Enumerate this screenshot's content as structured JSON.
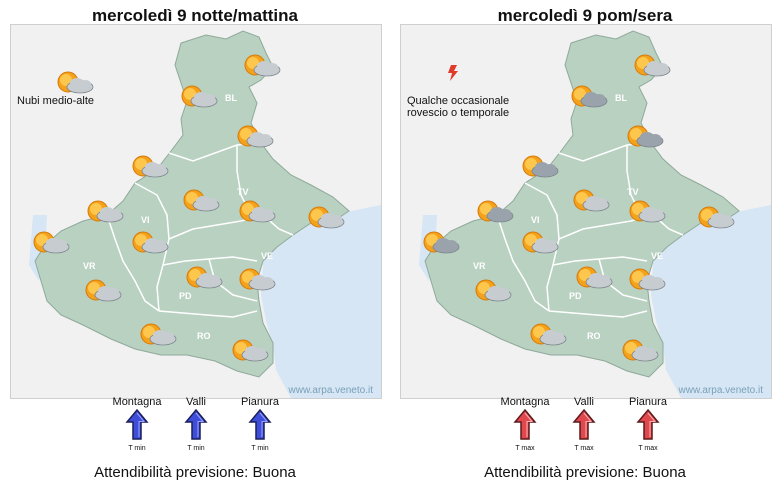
{
  "colors": {
    "land": "#b8d1c1",
    "sea": "#d6e6f5",
    "outside": "#f1f1f1",
    "border": "#ffffff",
    "arrow_min": "#3f4ed8",
    "arrow_max": "#e0484d"
  },
  "credit": "www.arpa.veneto.it",
  "provinces": [
    "BL",
    "TV",
    "VI",
    "VR",
    "VE",
    "PD",
    "RO"
  ],
  "left": {
    "title": "mercoledì  9 notte/mattina",
    "note": "Nubi medio-alte",
    "note_icon": "sun-behind-cloud-icon",
    "icons": [
      "sun-behind-cloud-icon",
      "sun-behind-cloud-icon",
      "sun-behind-cloud-icon",
      "sun-behind-cloud-icon",
      "sun-behind-cloud-icon",
      "sun-behind-cloud-icon",
      "sun-behind-cloud-icon",
      "sun-behind-cloud-icon",
      "sun-behind-cloud-icon",
      "sun-behind-cloud-icon",
      "sun-behind-cloud-icon",
      "sun-behind-cloud-icon",
      "sun-behind-cloud-icon",
      "sun-behind-cloud-icon"
    ],
    "trend": [
      {
        "label": "Montagna",
        "sub": "T min",
        "direction": "up"
      },
      {
        "label": "Valli",
        "sub": "T min",
        "direction": "up"
      },
      {
        "label": "Pianura",
        "sub": "T min",
        "direction": "up"
      }
    ],
    "reliability": "Attendibilità previsione: Buona"
  },
  "right": {
    "title": "mercoledì  9 pom/sera",
    "note": "Qualche occasionale\nrovescio o temporale",
    "note_icon": "lightning-icon",
    "icons": [
      "cloudy-sun-icon",
      "cloudy-sun-icon",
      "cloudy-sun-icon",
      "cloudy-sun-icon",
      "cloudy-sun-icon",
      "sun-behind-cloud-icon",
      "sun-behind-cloud-icon",
      "sun-behind-cloud-icon",
      "sun-behind-cloud-icon",
      "sun-behind-cloud-icon",
      "sun-behind-cloud-icon",
      "sun-behind-cloud-icon",
      "sun-behind-cloud-icon",
      "sun-behind-cloud-icon"
    ],
    "trend": [
      {
        "label": "Montagna",
        "sub": "T max",
        "direction": "up"
      },
      {
        "label": "Valli",
        "sub": "T max",
        "direction": "up"
      },
      {
        "label": "Pianura",
        "sub": "T max",
        "direction": "up"
      }
    ],
    "reliability": "Attendibilità previsione: Buona"
  }
}
